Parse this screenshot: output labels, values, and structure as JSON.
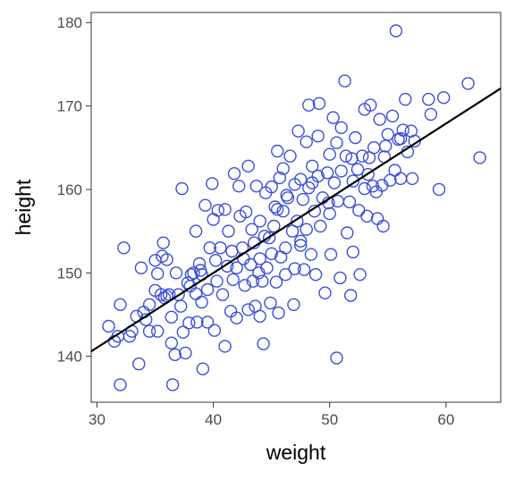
{
  "chart_data": {
    "type": "scatter",
    "title": "",
    "xlabel": "weight",
    "ylabel": "height",
    "xlim": [
      29.5,
      64.7
    ],
    "ylim": [
      134.5,
      181.2
    ],
    "x_ticks": [
      30,
      40,
      50,
      60
    ],
    "y_ticks": [
      140,
      150,
      160,
      170,
      180
    ],
    "grid": false,
    "legend": "none",
    "point_color": "#3b4fd9",
    "line_color": "#000000",
    "fit_line": {
      "x": [
        29.5,
        64.7
      ],
      "y": [
        140.6,
        172.1
      ]
    },
    "series": [
      {
        "values": [
          [
            31.0,
            143.6
          ],
          [
            31.5,
            141.8
          ],
          [
            31.8,
            142.4
          ],
          [
            32.0,
            146.2
          ],
          [
            32.0,
            136.6
          ],
          [
            32.3,
            153.0
          ],
          [
            32.8,
            142.4
          ],
          [
            33.0,
            143.0
          ],
          [
            33.4,
            144.8
          ],
          [
            33.6,
            139.1
          ],
          [
            33.8,
            150.6
          ],
          [
            34.0,
            145.3
          ],
          [
            34.2,
            144.4
          ],
          [
            34.5,
            143.0
          ],
          [
            34.5,
            146.2
          ],
          [
            35.0,
            147.9
          ],
          [
            35.0,
            151.5
          ],
          [
            35.2,
            143.0
          ],
          [
            35.5,
            147.4
          ],
          [
            35.6,
            152.0
          ],
          [
            35.7,
            153.6
          ],
          [
            35.8,
            147.0
          ],
          [
            36.0,
            151.6
          ],
          [
            36.2,
            147.4
          ],
          [
            36.4,
            144.7
          ],
          [
            36.4,
            141.6
          ],
          [
            36.5,
            136.6
          ],
          [
            36.7,
            140.2
          ],
          [
            36.8,
            150.0
          ],
          [
            37.0,
            147.4
          ],
          [
            37.2,
            146.0
          ],
          [
            37.3,
            160.1
          ],
          [
            37.4,
            142.9
          ],
          [
            37.6,
            140.4
          ],
          [
            37.8,
            148.8
          ],
          [
            38.0,
            148.4
          ],
          [
            38.1,
            149.8
          ],
          [
            38.3,
            150.0
          ],
          [
            38.5,
            155.0
          ],
          [
            38.5,
            147.5
          ],
          [
            38.6,
            144.1
          ],
          [
            38.8,
            151.1
          ],
          [
            39.0,
            149.8
          ],
          [
            39.0,
            146.5
          ],
          [
            39.1,
            138.5
          ],
          [
            39.3,
            158.1
          ],
          [
            39.5,
            148.0
          ],
          [
            39.5,
            144.1
          ],
          [
            39.7,
            153.0
          ],
          [
            39.9,
            160.7
          ],
          [
            40.0,
            156.4
          ],
          [
            40.2,
            151.5
          ],
          [
            40.3,
            149.0
          ],
          [
            40.4,
            157.5
          ],
          [
            40.6,
            153.0
          ],
          [
            40.8,
            147.4
          ],
          [
            41.0,
            157.6
          ],
          [
            41.0,
            141.2
          ],
          [
            41.2,
            150.8
          ],
          [
            41.3,
            155.0
          ],
          [
            41.5,
            145.4
          ],
          [
            41.6,
            152.6
          ],
          [
            41.8,
            161.9
          ],
          [
            42.0,
            150.6
          ],
          [
            42.0,
            144.6
          ],
          [
            42.2,
            160.4
          ],
          [
            42.3,
            156.8
          ],
          [
            42.5,
            153.0
          ],
          [
            42.7,
            148.5
          ],
          [
            42.8,
            157.3
          ],
          [
            43.0,
            162.8
          ],
          [
            43.0,
            145.6
          ],
          [
            43.2,
            151.0
          ],
          [
            43.3,
            155.2
          ],
          [
            43.5,
            153.6
          ],
          [
            43.6,
            146.0
          ],
          [
            43.7,
            160.4
          ],
          [
            43.9,
            150.0
          ],
          [
            44.0,
            156.2
          ],
          [
            44.0,
            144.8
          ],
          [
            44.2,
            149.0
          ],
          [
            44.3,
            141.5
          ],
          [
            44.4,
            154.4
          ],
          [
            44.5,
            159.6
          ],
          [
            44.6,
            150.6
          ],
          [
            44.8,
            154.2
          ],
          [
            44.9,
            146.4
          ],
          [
            45.0,
            160.3
          ],
          [
            45.0,
            152.3
          ],
          [
            45.2,
            155.6
          ],
          [
            45.4,
            148.9
          ],
          [
            45.5,
            164.6
          ],
          [
            45.5,
            157.6
          ],
          [
            45.6,
            145.2
          ],
          [
            45.8,
            151.9
          ],
          [
            46.0,
            157.4
          ],
          [
            46.0,
            162.5
          ],
          [
            46.2,
            153.0
          ],
          [
            46.2,
            149.8
          ],
          [
            46.4,
            159.0
          ],
          [
            46.6,
            164.0
          ],
          [
            46.8,
            155.0
          ],
          [
            46.9,
            146.2
          ],
          [
            47.0,
            160.6
          ],
          [
            47.0,
            150.5
          ],
          [
            47.2,
            156.2
          ],
          [
            47.3,
            167.0
          ],
          [
            47.5,
            153.8
          ],
          [
            47.5,
            161.2
          ],
          [
            47.7,
            158.8
          ],
          [
            47.8,
            150.4
          ],
          [
            48.0,
            165.7
          ],
          [
            48.0,
            155.2
          ],
          [
            48.2,
            170.1
          ],
          [
            48.2,
            160.2
          ],
          [
            48.4,
            152.2
          ],
          [
            48.5,
            162.8
          ],
          [
            48.7,
            157.4
          ],
          [
            48.8,
            149.8
          ],
          [
            49.0,
            161.6
          ],
          [
            49.0,
            166.4
          ],
          [
            49.1,
            170.3
          ],
          [
            49.2,
            155.6
          ],
          [
            49.4,
            159.0
          ],
          [
            49.6,
            147.6
          ],
          [
            49.8,
            162.0
          ],
          [
            50.0,
            157.1
          ],
          [
            50.0,
            164.2
          ],
          [
            50.1,
            152.2
          ],
          [
            50.3,
            168.6
          ],
          [
            50.4,
            160.8
          ],
          [
            50.6,
            139.8
          ],
          [
            50.7,
            158.6
          ],
          [
            50.9,
            149.4
          ],
          [
            51.0,
            167.4
          ],
          [
            51.0,
            162.2
          ],
          [
            51.3,
            173.0
          ],
          [
            51.4,
            164.0
          ],
          [
            51.5,
            154.8
          ],
          [
            51.7,
            158.5
          ],
          [
            51.8,
            147.3
          ],
          [
            52.0,
            161.0
          ],
          [
            52.0,
            152.5
          ],
          [
            52.2,
            166.2
          ],
          [
            52.4,
            162.4
          ],
          [
            52.5,
            157.5
          ],
          [
            52.6,
            149.8
          ],
          [
            52.8,
            164.0
          ],
          [
            53.0,
            169.6
          ],
          [
            53.0,
            160.1
          ],
          [
            53.2,
            156.8
          ],
          [
            53.4,
            163.8
          ],
          [
            53.5,
            170.1
          ],
          [
            53.7,
            160.4
          ],
          [
            53.8,
            165.0
          ],
          [
            54.0,
            159.7
          ],
          [
            54.1,
            156.5
          ],
          [
            54.3,
            168.4
          ],
          [
            54.5,
            160.5
          ],
          [
            54.6,
            155.6
          ],
          [
            54.8,
            165.2
          ],
          [
            55.0,
            166.6
          ],
          [
            55.2,
            161.1
          ],
          [
            55.4,
            168.8
          ],
          [
            55.6,
            162.3
          ],
          [
            55.7,
            179.0
          ],
          [
            55.9,
            166.0
          ],
          [
            56.1,
            161.3
          ],
          [
            56.3,
            167.1
          ],
          [
            56.5,
            170.8
          ],
          [
            56.7,
            164.5
          ],
          [
            57.0,
            167.0
          ],
          [
            57.1,
            161.3
          ],
          [
            57.3,
            165.8
          ],
          [
            58.5,
            170.8
          ],
          [
            58.7,
            169.0
          ],
          [
            59.4,
            160.0
          ],
          [
            59.8,
            171.0
          ],
          [
            61.9,
            172.7
          ],
          [
            62.9,
            163.8
          ],
          [
            36.0,
            147.2
          ],
          [
            38.9,
            150.3
          ],
          [
            41.7,
            149.2
          ],
          [
            44.0,
            151.7
          ],
          [
            45.3,
            157.9
          ],
          [
            47.5,
            153.3
          ],
          [
            49.9,
            158.4
          ],
          [
            53.3,
            161.8
          ],
          [
            56.1,
            166.1
          ],
          [
            40.1,
            143.1
          ],
          [
            42.6,
            151.7
          ],
          [
            46.3,
            159.3
          ],
          [
            48.5,
            160.8
          ],
          [
            51.9,
            163.7
          ],
          [
            35.2,
            149.9
          ],
          [
            37.9,
            144.0
          ],
          [
            43.4,
            149.0
          ],
          [
            45.7,
            161.4
          ],
          [
            50.6,
            165.6
          ],
          [
            54.7,
            163.9
          ]
        ]
      }
    ]
  }
}
